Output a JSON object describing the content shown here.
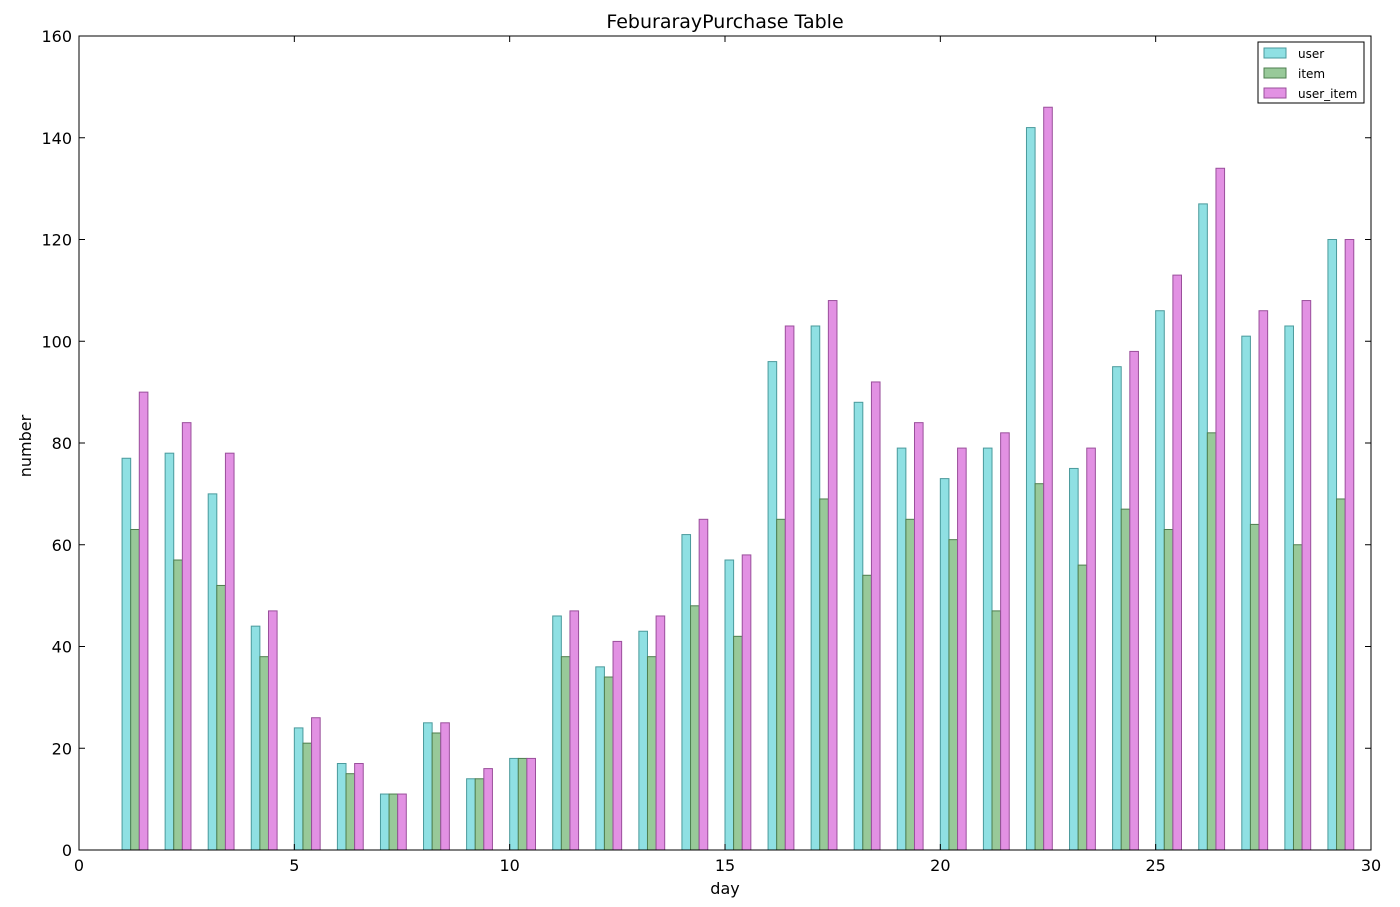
{
  "chart_data": {
    "type": "bar",
    "title": "FeburarayPurchase Table",
    "xlabel": "day",
    "ylabel": "number",
    "xlim": [
      0,
      30
    ],
    "ylim": [
      0,
      160
    ],
    "xticks": [
      "0",
      "5",
      "10",
      "15",
      "20",
      "25",
      "30"
    ],
    "yticks": [
      "0",
      "20",
      "40",
      "60",
      "80",
      "100",
      "120",
      "140",
      "160"
    ],
    "grid": false,
    "legend_position": "top-right",
    "x": [
      1,
      2,
      3,
      4,
      5,
      6,
      7,
      8,
      9,
      10,
      11,
      12,
      13,
      14,
      15,
      16,
      17,
      18,
      19,
      20,
      21,
      22,
      23,
      24,
      25,
      26,
      27,
      28,
      29
    ],
    "series": [
      {
        "name": "user",
        "color": "#8fe0e3",
        "edge_color": "#4a9a9c",
        "values": [
          77,
          78,
          70,
          44,
          24,
          17,
          11,
          25,
          14,
          18,
          46,
          36,
          43,
          62,
          57,
          96,
          103,
          88,
          79,
          73,
          79,
          142,
          75,
          95,
          106,
          127,
          101,
          103,
          120
        ]
      },
      {
        "name": "item",
        "color": "#98c999",
        "edge_color": "#4e7e4f",
        "values": [
          63,
          57,
          52,
          38,
          21,
          15,
          11,
          23,
          14,
          18,
          38,
          34,
          38,
          48,
          42,
          65,
          69,
          54,
          65,
          61,
          47,
          72,
          56,
          67,
          63,
          82,
          64,
          60,
          69
        ]
      },
      {
        "name": "user_item",
        "color": "#e291e3",
        "edge_color": "#9a4f9b",
        "values": [
          90,
          84,
          78,
          47,
          26,
          17,
          11,
          25,
          16,
          18,
          47,
          41,
          46,
          65,
          58,
          103,
          108,
          92,
          84,
          79,
          82,
          146,
          79,
          98,
          113,
          134,
          106,
          108,
          120
        ]
      }
    ]
  }
}
